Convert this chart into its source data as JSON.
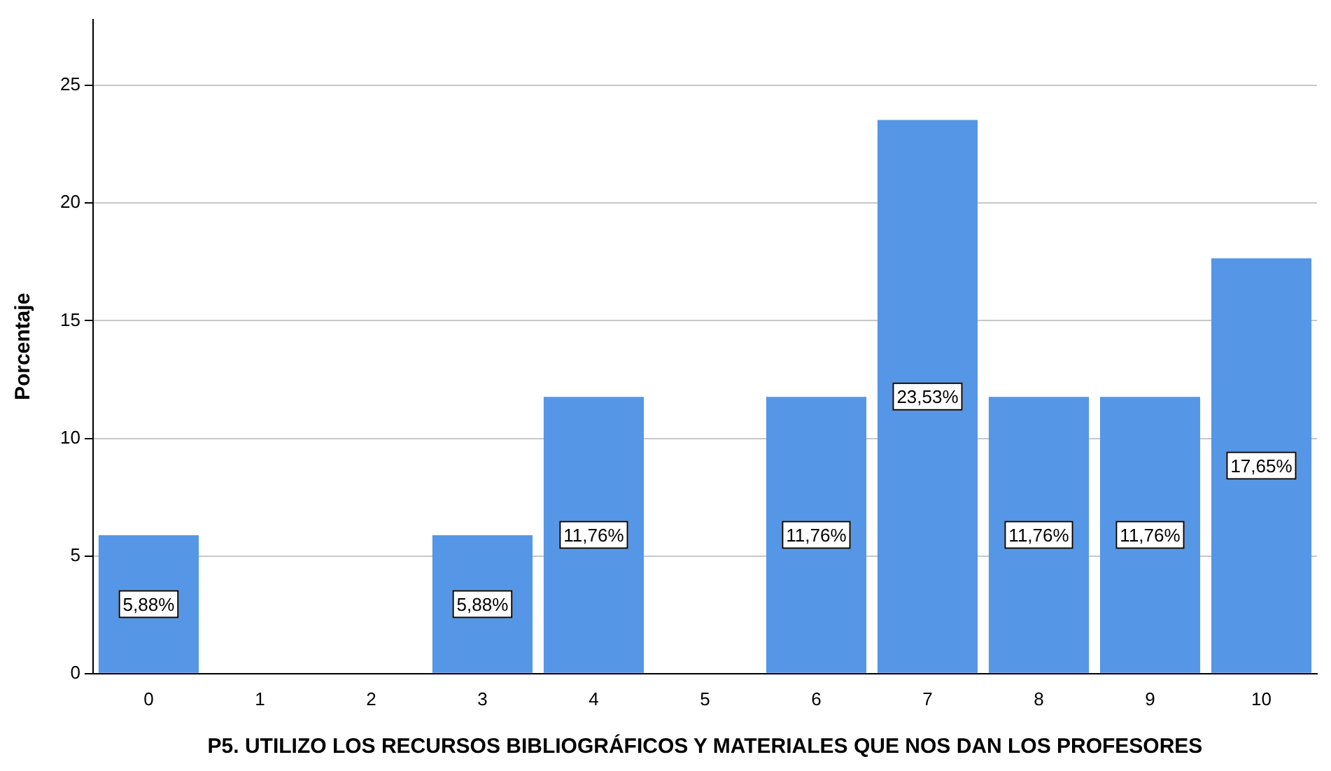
{
  "chart_data": {
    "type": "bar",
    "xlabel": "P5. UTILIZO LOS RECURSOS BIBLIOGRÁFICOS Y MATERIALES QUE NOS DAN LOS PROFESORES",
    "ylabel": "Porcentaje",
    "categories": [
      "0",
      "1",
      "2",
      "3",
      "4",
      "5",
      "6",
      "7",
      "8",
      "9",
      "10"
    ],
    "values": [
      5.88,
      0,
      0,
      5.88,
      11.76,
      0,
      11.76,
      23.53,
      11.76,
      11.76,
      17.65
    ],
    "value_labels": [
      "5,88%",
      null,
      null,
      "5,88%",
      "11,76%",
      null,
      "11,76%",
      "23,53%",
      "11,76%",
      "11,76%",
      "17,65%"
    ],
    "color": "#5596e6",
    "ylim": [
      0,
      27.8
    ],
    "yticks": [
      0,
      5,
      10,
      15,
      20,
      25
    ],
    "grid": "y",
    "legend": false
  }
}
